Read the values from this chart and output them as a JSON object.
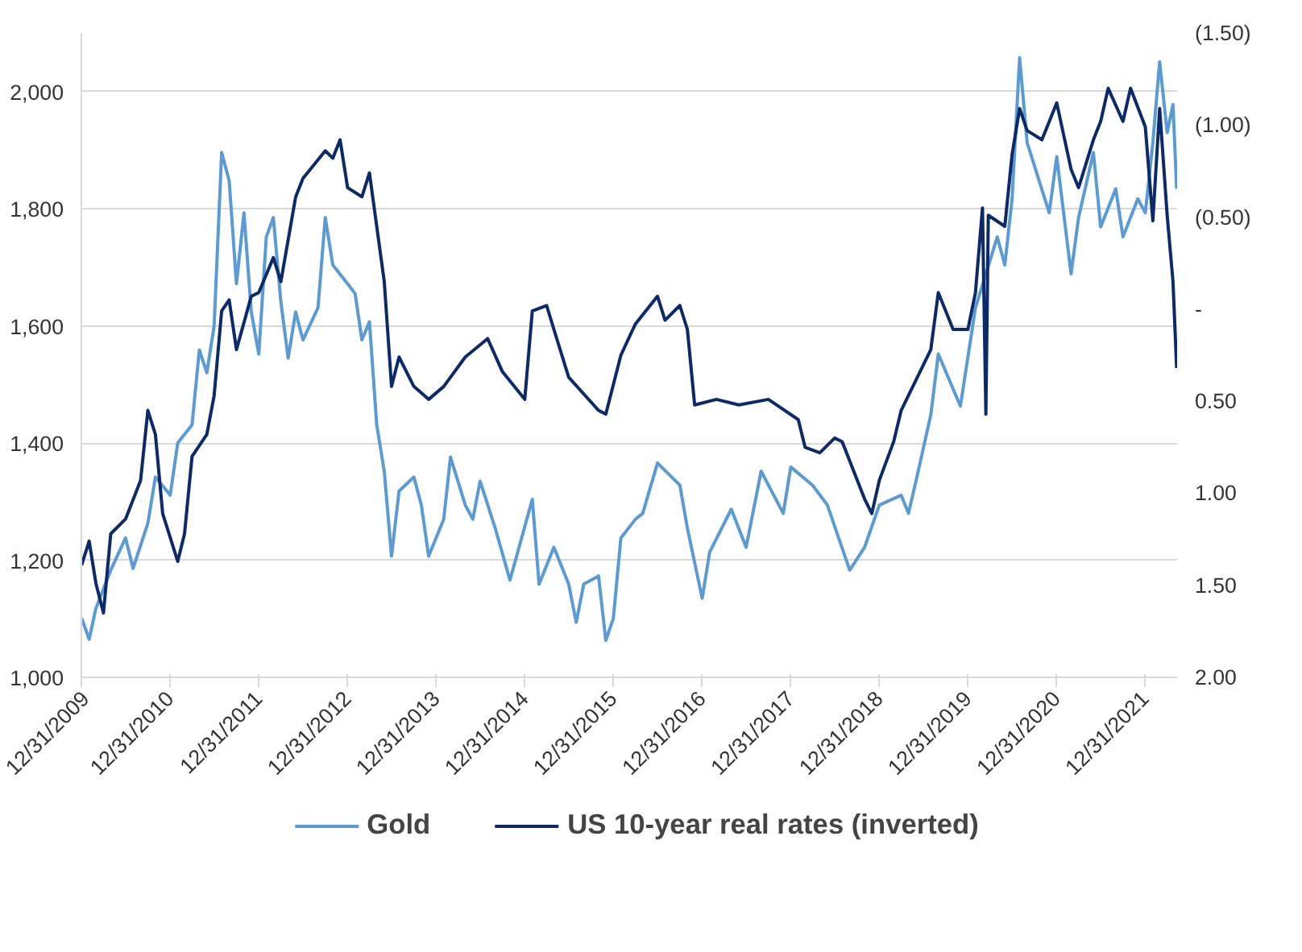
{
  "chart_data": {
    "type": "line",
    "xlim": [
      "2009-12-31",
      "2022-05-12"
    ],
    "ylim": [
      1000,
      2100
    ],
    "y2lim": [
      2.0,
      -1.5
    ],
    "xticks": [
      {
        "value": "2009-12-31",
        "label": "12/31/2009"
      },
      {
        "value": "2010-12-31",
        "label": "12/31/2010"
      },
      {
        "value": "2011-12-31",
        "label": "12/31/2011"
      },
      {
        "value": "2012-12-31",
        "label": "12/31/2012"
      },
      {
        "value": "2013-12-31",
        "label": "12/31/2013"
      },
      {
        "value": "2014-12-31",
        "label": "12/31/2014"
      },
      {
        "value": "2015-12-31",
        "label": "12/31/2015"
      },
      {
        "value": "2016-12-31",
        "label": "12/31/2016"
      },
      {
        "value": "2017-12-31",
        "label": "12/31/2017"
      },
      {
        "value": "2018-12-31",
        "label": "12/31/2018"
      },
      {
        "value": "2019-12-31",
        "label": "12/31/2019"
      },
      {
        "value": "2020-12-31",
        "label": "12/31/2020"
      },
      {
        "value": "2021-12-31",
        "label": "12/31/2021"
      }
    ],
    "yticks": [
      {
        "value": 1000,
        "label": "1,000"
      },
      {
        "value": 1200,
        "label": "1,200"
      },
      {
        "value": 1400,
        "label": "1,400"
      },
      {
        "value": 1600,
        "label": "1,600"
      },
      {
        "value": 1800,
        "label": "1,800"
      },
      {
        "value": 2000,
        "label": "2,000"
      }
    ],
    "y2ticks": [
      {
        "value": -1.5,
        "label": "(1.50)"
      },
      {
        "value": -1.0,
        "label": "(1.00)"
      },
      {
        "value": -0.5,
        "label": "(0.50)"
      },
      {
        "value": 0,
        "label": "-"
      },
      {
        "value": 0.5,
        "label": "0.50"
      },
      {
        "value": 1.0,
        "label": "1.00"
      },
      {
        "value": 1.5,
        "label": "1.50"
      },
      {
        "value": 2.0,
        "label": "2.00"
      }
    ],
    "grid": "y",
    "legend": "bottom",
    "marker": "none",
    "line_style": "solid",
    "series": [
      {
        "name": "Gold",
        "color": "#5b9bd5",
        "x": [
          "2010-01",
          "2010-02",
          "2010-03",
          "2010-05",
          "2010-07",
          "2010-08",
          "2010-10",
          "2010-11",
          "2011-01",
          "2011-02",
          "2011-04",
          "2011-05",
          "2011-06",
          "2011-07",
          "2011-08",
          "2011-09",
          "2011-10",
          "2011-11",
          "2011-12",
          "2012-01",
          "2012-02",
          "2012-03",
          "2012-04",
          "2012-05",
          "2012-06",
          "2012-07",
          "2012-09",
          "2012-10",
          "2012-11",
          "2013-01",
          "2013-02",
          "2013-03",
          "2013-04",
          "2013-05",
          "2013-06",
          "2013-07",
          "2013-08",
          "2013-10",
          "2013-11",
          "2013-12",
          "2014-02",
          "2014-03",
          "2014-05",
          "2014-06",
          "2014-07",
          "2014-09",
          "2014-11",
          "2015-02",
          "2015-03",
          "2015-05",
          "2015-07",
          "2015-08",
          "2015-09",
          "2015-11",
          "2015-12",
          "2016-01",
          "2016-02",
          "2016-04",
          "2016-05",
          "2016-07",
          "2016-10",
          "2016-11",
          "2017-01",
          "2017-02",
          "2017-05",
          "2017-07",
          "2017-09",
          "2017-12",
          "2018-01",
          "2018-04",
          "2018-06",
          "2018-09",
          "2018-11",
          "2019-01",
          "2019-04",
          "2019-05",
          "2019-06",
          "2019-08",
          "2019-09",
          "2019-12",
          "2020-02",
          "2020-05",
          "2020-06",
          "2020-07",
          "2020-08",
          "2020-09",
          "2020-12",
          "2021-01",
          "2021-03",
          "2021-04",
          "2021-06",
          "2021-07",
          "2021-09",
          "2021-10",
          "2021-12",
          "2022-01",
          "2022-02",
          "2022-03",
          "2022-04",
          "2022-04-25",
          "2022-05-10"
        ],
        "values": [
          1101,
          1065,
          1118,
          1183,
          1238,
          1186,
          1263,
          1342,
          1311,
          1400,
          1431,
          1559,
          1520,
          1600,
          1896,
          1848,
          1672,
          1793,
          1624,
          1552,
          1752,
          1785,
          1641,
          1545,
          1624,
          1576,
          1631,
          1785,
          1704,
          1672,
          1655,
          1576,
          1607,
          1431,
          1352,
          1207,
          1318,
          1342,
          1294,
          1207,
          1270,
          1376,
          1294,
          1270,
          1335,
          1255,
          1166,
          1304,
          1159,
          1222,
          1159,
          1094,
          1159,
          1173,
          1063,
          1101,
          1238,
          1270,
          1280,
          1366,
          1328,
          1255,
          1135,
          1214,
          1287,
          1222,
          1352,
          1280,
          1359,
          1328,
          1294,
          1183,
          1222,
          1294,
          1311,
          1280,
          1335,
          1448,
          1552,
          1463,
          1631,
          1752,
          1704,
          1817,
          2058,
          1913,
          1793,
          1889,
          1689,
          1785,
          1896,
          1769,
          1834,
          1752,
          1817,
          1793,
          1913,
          2051,
          1930,
          1978,
          1834
        ]
      },
      {
        "name": "US 10-year real rates (inverted)",
        "color": "#0c2a6a",
        "axis": "y2",
        "x": [
          "2010-01",
          "2010-02",
          "2010-03",
          "2010-04",
          "2010-05",
          "2010-07",
          "2010-09",
          "2010-10",
          "2010-11",
          "2010-12",
          "2011-02",
          "2011-03",
          "2011-04",
          "2011-06",
          "2011-07",
          "2011-08",
          "2011-09",
          "2011-10",
          "2011-12",
          "2012-01",
          "2012-03",
          "2012-04",
          "2012-06",
          "2012-07",
          "2012-10",
          "2012-11",
          "2012-12",
          "2013-01",
          "2013-03",
          "2013-04",
          "2013-05",
          "2013-06",
          "2013-07",
          "2013-08",
          "2013-10",
          "2013-12",
          "2014-02",
          "2014-05",
          "2014-08",
          "2014-10",
          "2015-01",
          "2015-02",
          "2015-04",
          "2015-05",
          "2015-07",
          "2015-11",
          "2015-12",
          "2016-02",
          "2016-04",
          "2016-07",
          "2016-08",
          "2016-10",
          "2016-11",
          "2016-12",
          "2017-03",
          "2017-06",
          "2017-10",
          "2018-02",
          "2018-03",
          "2018-05",
          "2018-07",
          "2018-08",
          "2018-11",
          "2018-12",
          "2019-01",
          "2019-03",
          "2019-04",
          "2019-08",
          "2019-09",
          "2019-11",
          "2020-01",
          "2020-02",
          "2020-03-01",
          "2020-03-15",
          "2020-03-25",
          "2020-06",
          "2020-07",
          "2020-08",
          "2020-09",
          "2020-11",
          "2021-01",
          "2021-03",
          "2021-04",
          "2021-06",
          "2021-07",
          "2021-08",
          "2021-10",
          "2021-11",
          "2022-01",
          "2022-02",
          "2022-03",
          "2022-04",
          "2022-04-25",
          "2022-05-10"
        ],
        "values": [
          1.39,
          1.26,
          1.49,
          1.65,
          1.22,
          1.14,
          0.93,
          0.55,
          0.68,
          1.11,
          1.37,
          1.22,
          0.8,
          0.68,
          0.47,
          0.01,
          -0.05,
          0.22,
          -0.07,
          -0.09,
          -0.28,
          -0.15,
          -0.61,
          -0.71,
          -0.86,
          -0.82,
          -0.92,
          -0.66,
          -0.61,
          -0.74,
          -0.45,
          -0.15,
          0.42,
          0.26,
          0.42,
          0.49,
          0.42,
          0.26,
          0.16,
          0.34,
          0.49,
          0.01,
          -0.02,
          0.11,
          0.37,
          0.55,
          0.57,
          0.25,
          0.08,
          -0.07,
          0.06,
          -0.02,
          0.11,
          0.52,
          0.49,
          0.52,
          0.49,
          0.6,
          0.75,
          0.78,
          0.7,
          0.72,
          1.03,
          1.11,
          0.93,
          0.72,
          0.55,
          0.22,
          -0.09,
          0.11,
          0.11,
          -0.09,
          -0.55,
          0.57,
          -0.51,
          -0.45,
          -0.84,
          -1.09,
          -0.97,
          -0.92,
          -1.12,
          -0.76,
          -0.66,
          -0.92,
          -1.02,
          -1.2,
          -1.02,
          -1.2,
          -0.99,
          -0.48,
          -1.09,
          -0.51,
          -0.15,
          0.32
        ]
      }
    ]
  }
}
